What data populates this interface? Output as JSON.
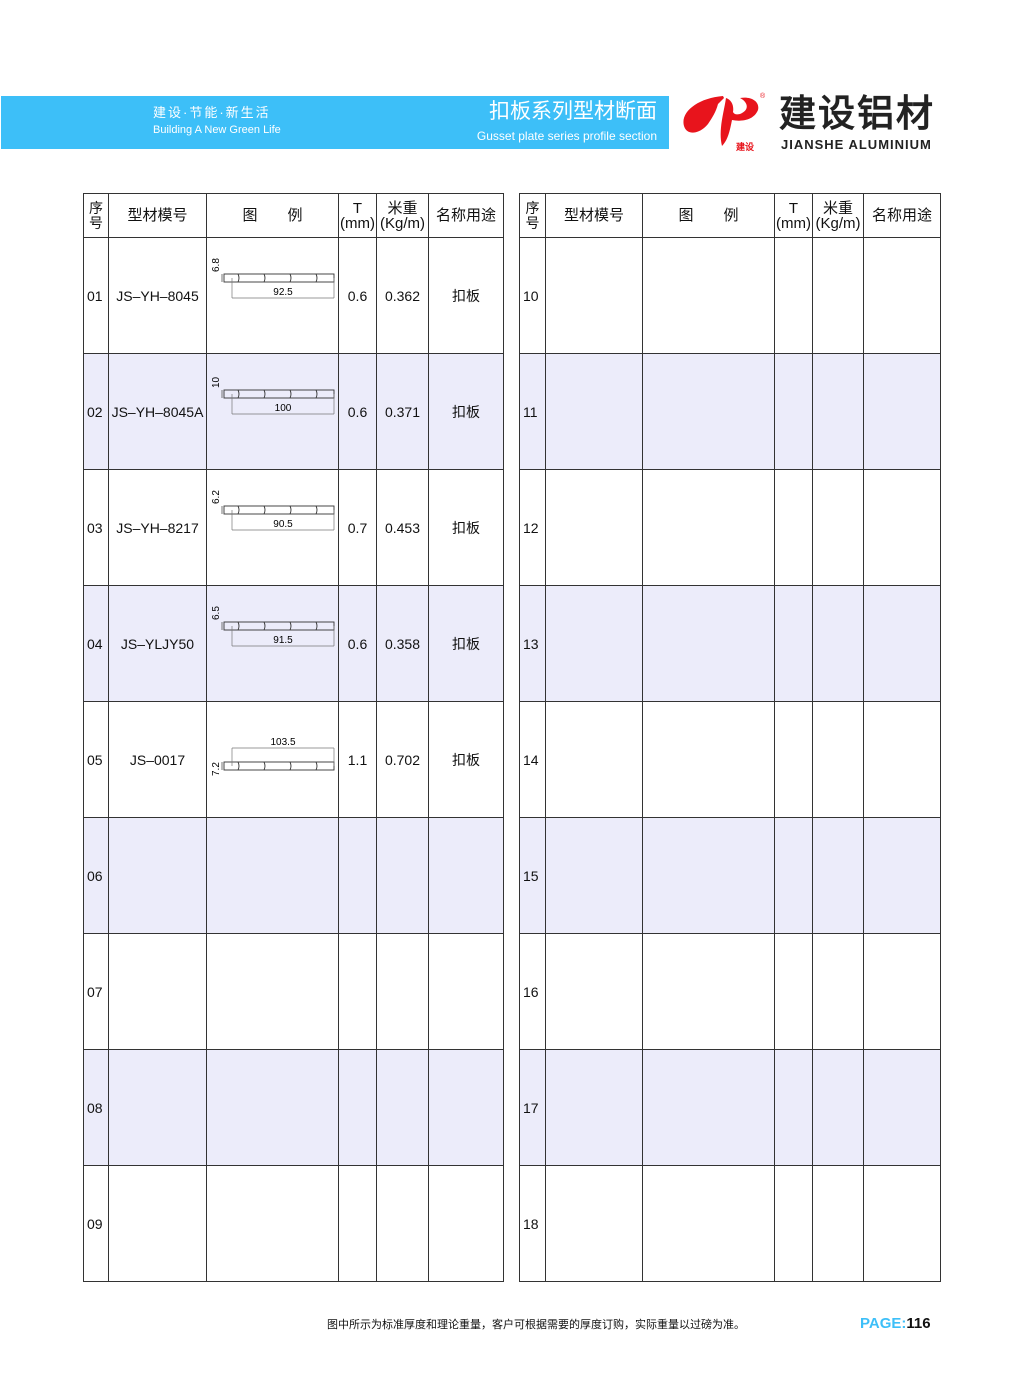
{
  "header": {
    "slogan_cn": "建设·节能·新生活",
    "slogan_en": "Building A New Green Life",
    "title_cn": "扣板系列型材断面",
    "title_en": "Gusset plate series profile section"
  },
  "brand": {
    "name_cn": "建设铝材",
    "name_en": "JIANSHE ALUMINIUM",
    "logo_text": "建设",
    "registered": "®",
    "logo_color": "#e8141c"
  },
  "table_headers": {
    "seq": "序号",
    "model": "型材模号",
    "diagram": "图　　例",
    "t": "T",
    "t_unit": "(mm)",
    "weight": "米重",
    "weight_unit": "(Kg/m)",
    "use": "名称用途"
  },
  "left_rows": [
    {
      "seq": "01",
      "model": "JS–YH–8045",
      "width": "92.5",
      "height": "6.8",
      "t": "0.6",
      "weight": "0.362",
      "use": "扣板"
    },
    {
      "seq": "02",
      "model": "JS–YH–8045A",
      "width": "100",
      "height": "10",
      "t": "0.6",
      "weight": "0.371",
      "use": "扣板"
    },
    {
      "seq": "03",
      "model": "JS–YH–8217",
      "width": "90.5",
      "height": "6.2",
      "t": "0.7",
      "weight": "0.453",
      "use": "扣板"
    },
    {
      "seq": "04",
      "model": "JS–YLJY50",
      "width": "91.5",
      "height": "6.5",
      "t": "0.6",
      "weight": "0.358",
      "use": "扣板"
    },
    {
      "seq": "05",
      "model": "JS–0017",
      "width": "103.5",
      "height": "7.2",
      "t": "1.1",
      "weight": "0.702",
      "use": "扣板"
    },
    {
      "seq": "06"
    },
    {
      "seq": "07"
    },
    {
      "seq": "08"
    },
    {
      "seq": "09"
    }
  ],
  "right_rows": [
    {
      "seq": "10"
    },
    {
      "seq": "11"
    },
    {
      "seq": "12"
    },
    {
      "seq": "13"
    },
    {
      "seq": "14"
    },
    {
      "seq": "15"
    },
    {
      "seq": "16"
    },
    {
      "seq": "17"
    },
    {
      "seq": "18"
    }
  ],
  "footer": {
    "note": "图中所示为标准厚度和理论重量，客户可根据需要的厚度订购，实际重量以过磅为准。",
    "page_label": "PAGE:",
    "page_number": "116"
  }
}
